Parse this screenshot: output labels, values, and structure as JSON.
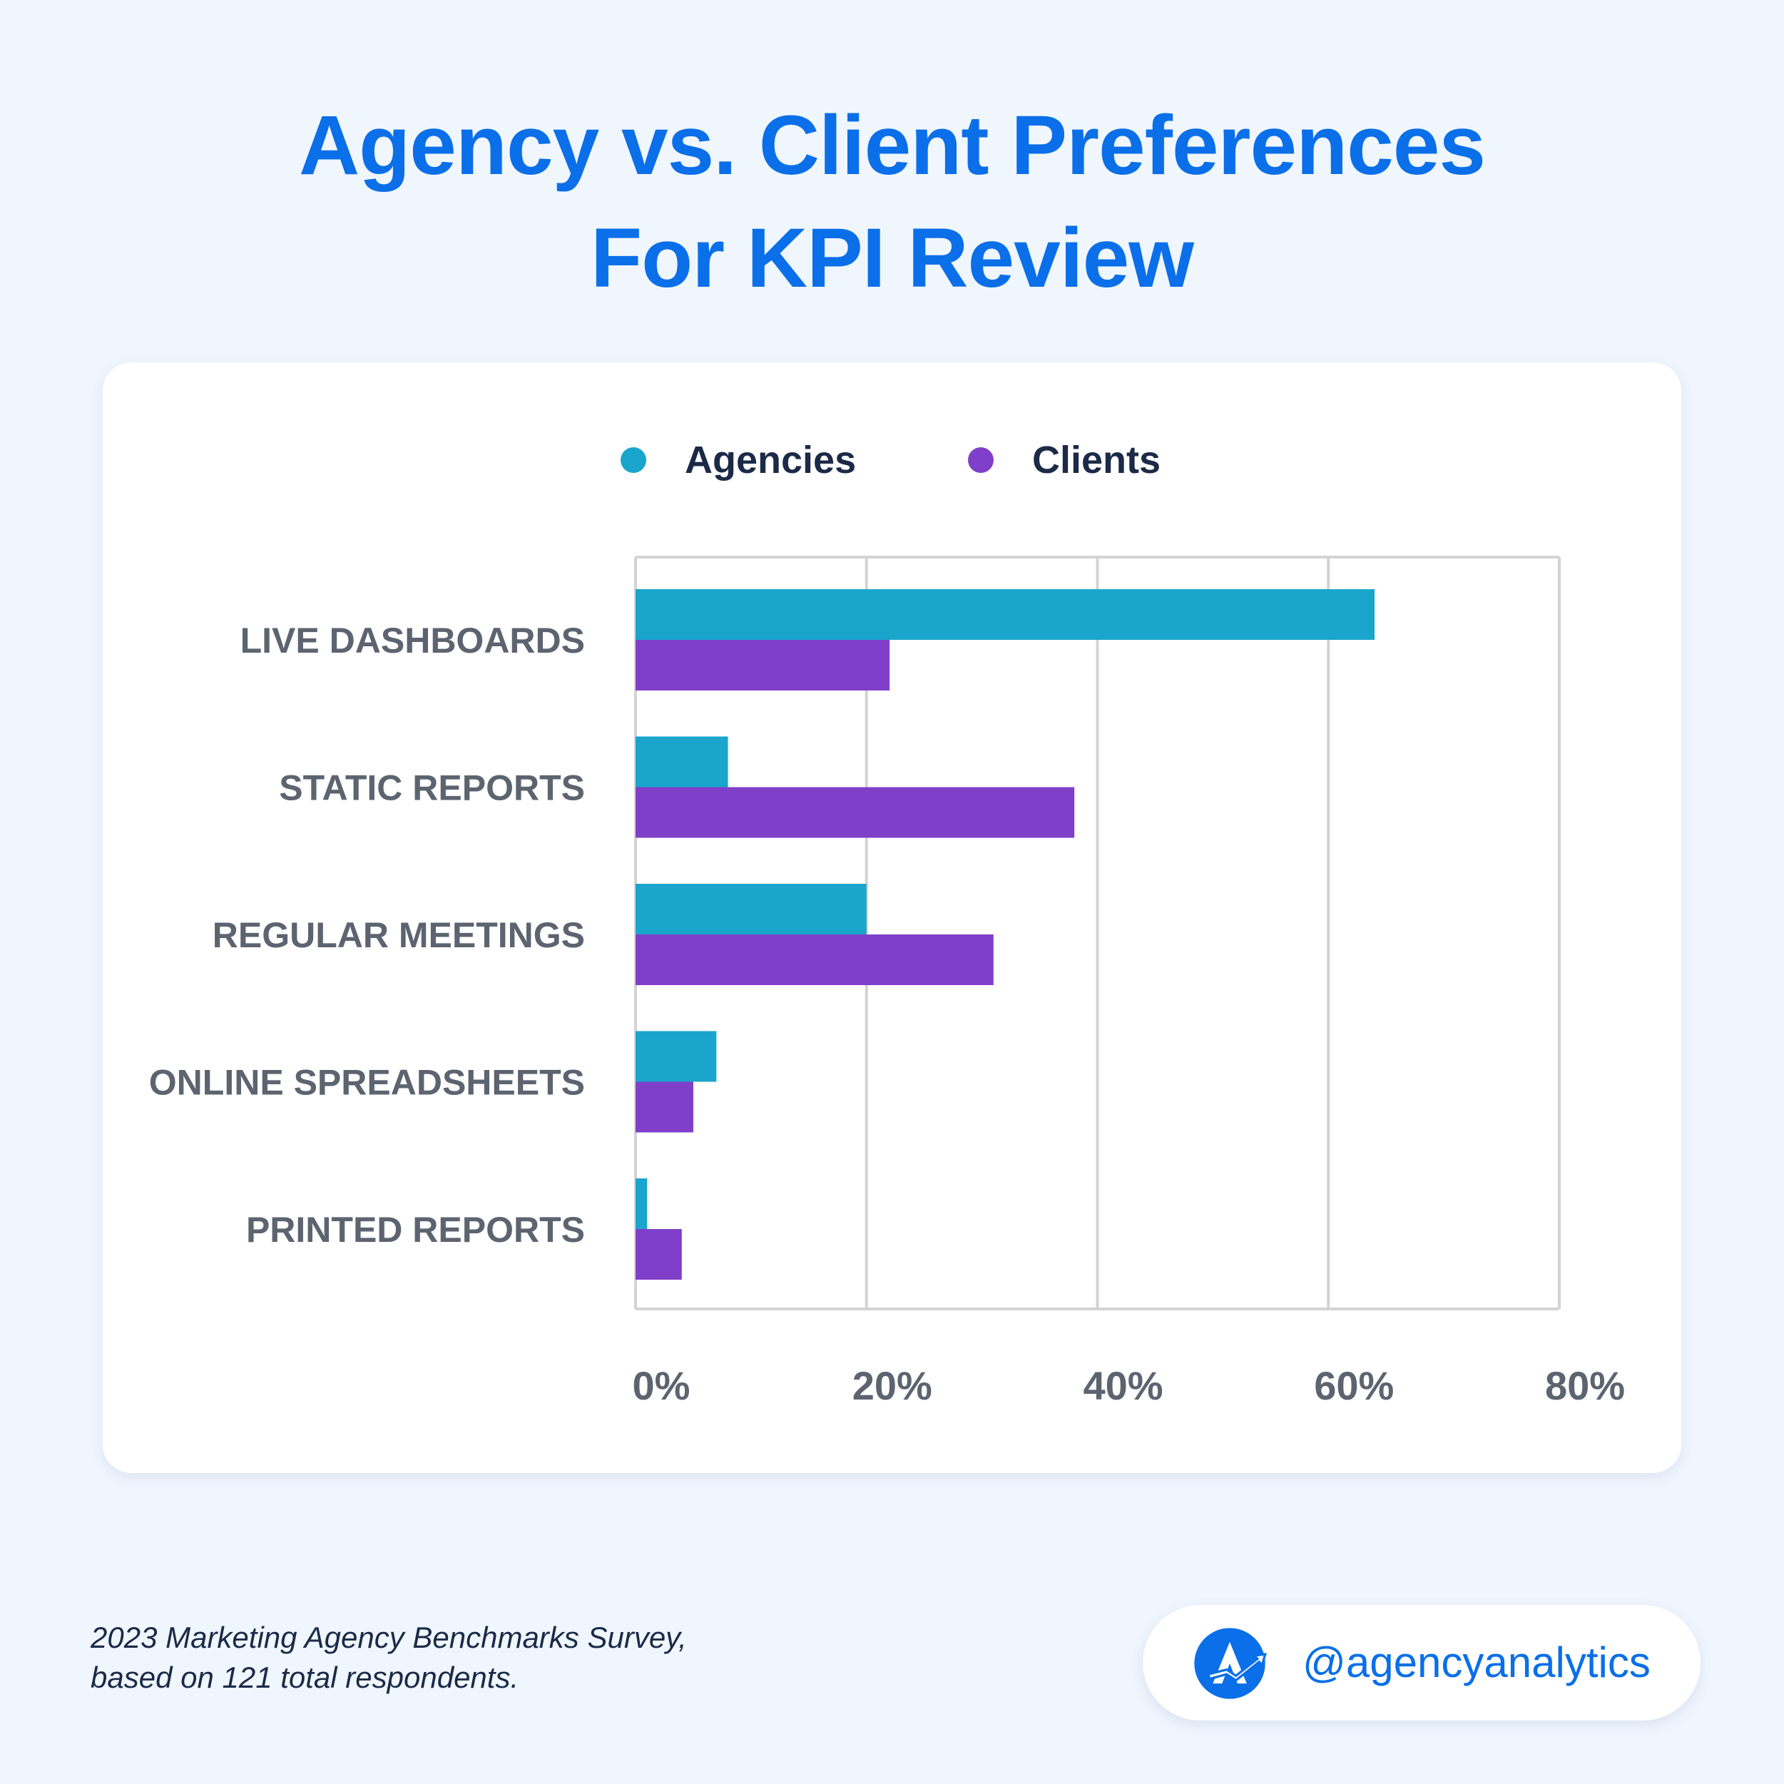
{
  "title_lines": [
    "Agency vs. Client Preferences",
    "For KPI Review"
  ],
  "legend": [
    {
      "label": "Agencies",
      "color": "#1aa5cc"
    },
    {
      "label": "Clients",
      "color": "#7f3fc9"
    }
  ],
  "chart_data": {
    "type": "bar",
    "orientation": "horizontal",
    "title": "Agency vs. Client Preferences For KPI Review",
    "categories": [
      "LIVE DASHBOARDS",
      "STATIC REPORTS",
      "REGULAR MEETINGS",
      "ONLINE SPREADSHEETS",
      "PRINTED REPORTS"
    ],
    "series": [
      {
        "name": "Agencies",
        "color": "#1aa5cc",
        "values": [
          64,
          8,
          20,
          7,
          1
        ]
      },
      {
        "name": "Clients",
        "color": "#7f3fc9",
        "values": [
          22,
          38,
          31,
          5,
          4
        ]
      }
    ],
    "xlim": [
      0,
      80
    ],
    "x_ticks": [
      "0%",
      "20%",
      "40%",
      "60%",
      "80%"
    ],
    "grid": true,
    "legend_position": "top-center",
    "xlabel": "",
    "ylabel": ""
  },
  "footnote": [
    "2023 Marketing Agency Benchmarks Survey,",
    "based on 121 total respondents."
  ],
  "brand": {
    "handle": "@agencyanalytics",
    "logo_icon": "agencyanalytics-logo-icon",
    "color": "#0a6fe8"
  }
}
